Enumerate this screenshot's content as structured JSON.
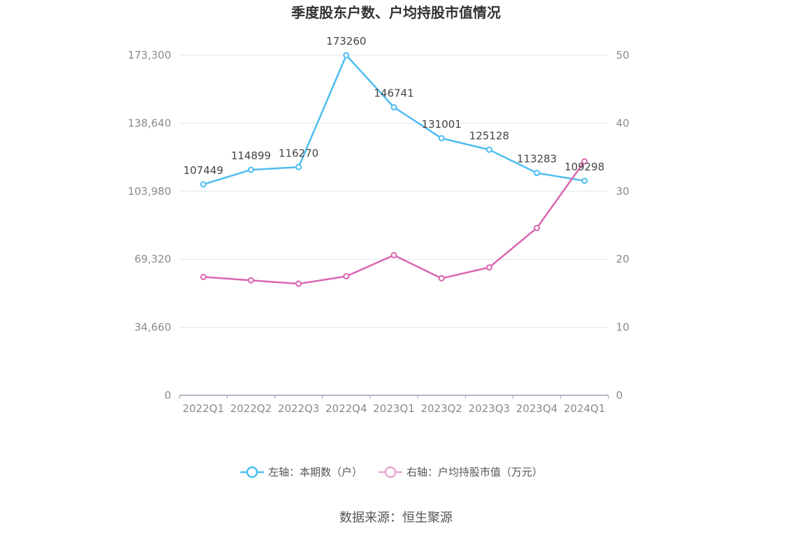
{
  "chart_data": {
    "type": "line",
    "title": "季度股东户数、户均持股市值情况",
    "categories": [
      "2022Q1",
      "2022Q2",
      "2022Q3",
      "2022Q4",
      "2023Q1",
      "2023Q2",
      "2023Q3",
      "2023Q4",
      "2024Q1"
    ],
    "series": [
      {
        "name": "左轴：本期数（户）",
        "axis": "left",
        "color": "#4dbdf0",
        "values": [
          107449,
          114899,
          116270,
          173260,
          146741,
          131001,
          125128,
          113283,
          109298
        ],
        "show_labels": true
      },
      {
        "name": "右轴：户均持股市值（万元）",
        "axis": "right",
        "color": "#d966b0",
        "legend_color": "#eaa6d2",
        "values": [
          17.4,
          16.9,
          16.4,
          17.5,
          20.6,
          17.2,
          18.8,
          24.6,
          34.4
        ],
        "show_labels": false
      }
    ],
    "left_axis": {
      "ticks": [
        0,
        34660,
        69320,
        103980,
        138640,
        173300
      ],
      "tick_labels": [
        "0",
        "34,660",
        "69,320",
        "103,980",
        "138,640",
        "173,300"
      ],
      "ylim": [
        0,
        173300
      ]
    },
    "right_axis": {
      "ticks": [
        0,
        10,
        20,
        30,
        40,
        50
      ],
      "tick_labels": [
        "0",
        "10",
        "20",
        "30",
        "40",
        "50"
      ],
      "ylim": [
        0,
        50
      ]
    },
    "grid": true,
    "legend_position": "bottom-center",
    "source": "数据来源：恒生聚源"
  }
}
